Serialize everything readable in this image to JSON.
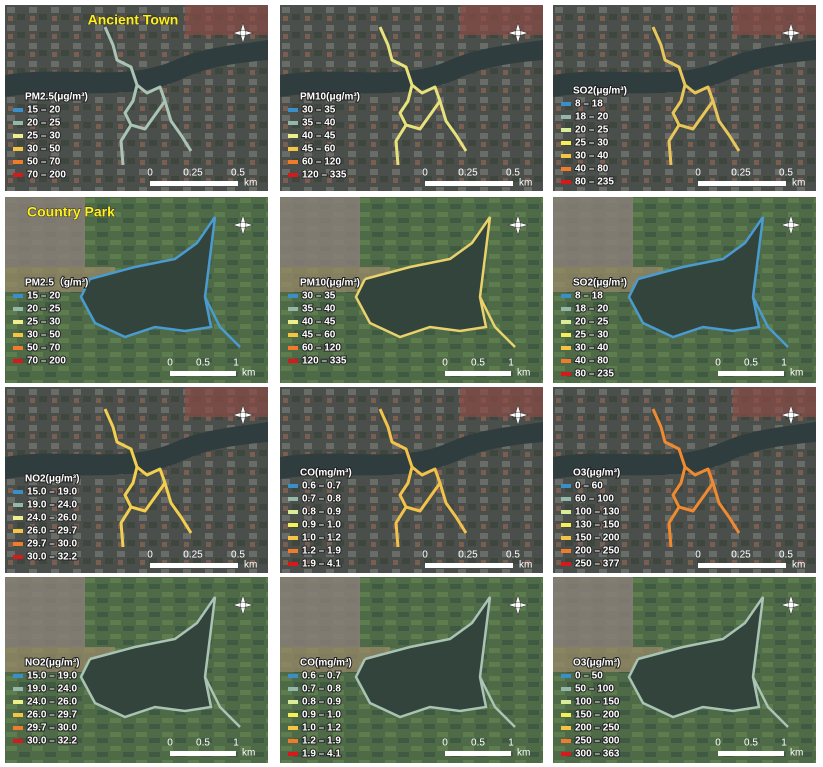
{
  "panels": [
    {
      "title": "Ancient Town",
      "legend_title": "PM2.5(μg/m³)",
      "route_color": "#a9c4b4",
      "legend": [
        {
          "label": "15 – 20",
          "color": "#3b8fc8"
        },
        {
          "label": "20 – 25",
          "color": "#93b8aa"
        },
        {
          "label": "25 – 30",
          "color": "#eeee8c"
        },
        {
          "label": "30 – 50",
          "color": "#f5c443"
        },
        {
          "label": "50 – 70",
          "color": "#f07b2a"
        },
        {
          "label": "70 – 200",
          "color": "#d8191c"
        }
      ],
      "scale": [
        "0",
        "0.25",
        "0.5"
      ],
      "unit": "km"
    },
    {
      "legend_title": "PM10(μg/m³)",
      "route_color": "#e6e27c",
      "legend": [
        {
          "label": "30 – 35",
          "color": "#3b8fc8"
        },
        {
          "label": "35 – 40",
          "color": "#93b8aa"
        },
        {
          "label": "40 – 45",
          "color": "#eeee8c"
        },
        {
          "label": "45 – 60",
          "color": "#f5c443"
        },
        {
          "label": "60 – 120",
          "color": "#f07b2a"
        },
        {
          "label": "120 – 335",
          "color": "#d8191c"
        }
      ],
      "scale": [
        "0",
        "0.25",
        "0.5"
      ],
      "unit": "km"
    },
    {
      "legend_title": "SO2(μg/m³)",
      "route_color": "#e8c65a",
      "legend": [
        {
          "label": "8 – 18",
          "color": "#3b8fc8"
        },
        {
          "label": "18 – 20",
          "color": "#93b8aa"
        },
        {
          "label": "20 – 25",
          "color": "#d8ec9a"
        },
        {
          "label": "25 – 30",
          "color": "#f5f05a"
        },
        {
          "label": "30 – 40",
          "color": "#f5c443"
        },
        {
          "label": "40 – 80",
          "color": "#f07b2a"
        },
        {
          "label": "80 – 235",
          "color": "#d8191c"
        }
      ],
      "scale": [
        "0",
        "0.25",
        "0.5"
      ],
      "unit": "km"
    },
    {
      "title": "Country Park",
      "legend_title": "PM2.5（g/m³)",
      "route_color": "#4a9bd0",
      "legend": [
        {
          "label": "15 – 20",
          "color": "#3b8fc8"
        },
        {
          "label": "20 – 25",
          "color": "#93b8aa"
        },
        {
          "label": "25 – 30",
          "color": "#eeee8c"
        },
        {
          "label": "30 – 50",
          "color": "#f5c443"
        },
        {
          "label": "50 – 70",
          "color": "#f07b2a"
        },
        {
          "label": "70 – 200",
          "color": "#d8191c"
        }
      ],
      "scale": [
        "0",
        "0.5",
        "1"
      ],
      "unit": "km"
    },
    {
      "legend_title": "PM10(μg/m³)",
      "route_color": "#e9d26c",
      "legend": [
        {
          "label": "30 – 35",
          "color": "#3b8fc8"
        },
        {
          "label": "35 – 40",
          "color": "#93b8aa"
        },
        {
          "label": "40 – 45",
          "color": "#eeee8c"
        },
        {
          "label": "45 – 60",
          "color": "#f5c443"
        },
        {
          "label": "60 – 120",
          "color": "#f07b2a"
        },
        {
          "label": "120 – 335",
          "color": "#d8191c"
        }
      ],
      "scale": [
        "0",
        "0.5",
        "1"
      ],
      "unit": "km"
    },
    {
      "legend_title": "SO2(μg/m³)",
      "route_color": "#4a9bd0",
      "legend": [
        {
          "label": "8 – 18",
          "color": "#3b8fc8"
        },
        {
          "label": "18 – 20",
          "color": "#93b8aa"
        },
        {
          "label": "20 – 25",
          "color": "#d8ec9a"
        },
        {
          "label": "25 – 30",
          "color": "#f5f05a"
        },
        {
          "label": "30 – 40",
          "color": "#f5c443"
        },
        {
          "label": "40 – 80",
          "color": "#f07b2a"
        },
        {
          "label": "80 – 235",
          "color": "#d8191c"
        }
      ],
      "scale": [
        "0",
        "0.5",
        "1"
      ],
      "unit": "km"
    },
    {
      "legend_title": "NO2(μg/m³)",
      "route_color": "#f2cf4e",
      "legend": [
        {
          "label": "15.0 – 19.0",
          "color": "#3b8fc8"
        },
        {
          "label": "19.0 – 24.0",
          "color": "#93b8aa"
        },
        {
          "label": "24.0 – 26.0",
          "color": "#eeee8c"
        },
        {
          "label": "26.0 – 29.7",
          "color": "#f5c443"
        },
        {
          "label": "29.7 – 30.0",
          "color": "#f07b2a"
        },
        {
          "label": "30.0 – 32.2",
          "color": "#d8191c"
        }
      ],
      "scale": [
        "0",
        "0.25",
        "0.5"
      ],
      "unit": "km"
    },
    {
      "legend_title": "CO(mg/m³)",
      "route_color": "#f2c24a",
      "legend": [
        {
          "label": "0.6 – 0.7",
          "color": "#3b8fc8"
        },
        {
          "label": "0.7 – 0.8",
          "color": "#93b8aa"
        },
        {
          "label": "0.8 – 0.9",
          "color": "#d8ec9a"
        },
        {
          "label": "0.9 – 1.0",
          "color": "#f5f05a"
        },
        {
          "label": "1.0 – 1.2",
          "color": "#f5c443"
        },
        {
          "label": "1.2 – 1.9",
          "color": "#f07b2a"
        },
        {
          "label": "1.9 – 4.1",
          "color": "#d8191c"
        }
      ],
      "scale": [
        "0",
        "0.25",
        "0.5"
      ],
      "unit": "km"
    },
    {
      "legend_title": "O3(μg/m³)",
      "route_color": "#f08a30",
      "legend": [
        {
          "label": "0 – 60",
          "color": "#3b8fc8"
        },
        {
          "label": "60 – 100",
          "color": "#93b8aa"
        },
        {
          "label": "100 – 130",
          "color": "#d8ec9a"
        },
        {
          "label": "130 – 150",
          "color": "#f5f05a"
        },
        {
          "label": "150 – 200",
          "color": "#f5c443"
        },
        {
          "label": "200 – 250",
          "color": "#f07b2a"
        },
        {
          "label": "250 – 377",
          "color": "#d8191c"
        }
      ],
      "scale": [
        "0",
        "0.25",
        "0.5"
      ],
      "unit": "km"
    },
    {
      "legend_title": "NO2(μg/m³)",
      "route_color": "#a9c4b4",
      "legend": [
        {
          "label": "15.0 – 19.0",
          "color": "#3b8fc8"
        },
        {
          "label": "19.0 – 24.0",
          "color": "#93b8aa"
        },
        {
          "label": "24.0 – 26.0",
          "color": "#eeee8c"
        },
        {
          "label": "26.0 – 29.7",
          "color": "#f5c443"
        },
        {
          "label": "29.7 – 30.0",
          "color": "#f07b2a"
        },
        {
          "label": "30.0 – 32.2",
          "color": "#d8191c"
        }
      ],
      "scale": [
        "0",
        "0.5",
        "1"
      ],
      "unit": "km"
    },
    {
      "legend_title": "CO(mg/m³)",
      "route_color": "#a9c4b4",
      "legend": [
        {
          "label": "0.6 – 0.7",
          "color": "#3b8fc8"
        },
        {
          "label": "0.7 – 0.8",
          "color": "#93b8aa"
        },
        {
          "label": "0.8 – 0.9",
          "color": "#d8ec9a"
        },
        {
          "label": "0.9 – 1.0",
          "color": "#f5f05a"
        },
        {
          "label": "1.0 – 1.2",
          "color": "#f5c443"
        },
        {
          "label": "1.2 – 1.9",
          "color": "#f07b2a"
        },
        {
          "label": "1.9 – 4.1",
          "color": "#d8191c"
        }
      ],
      "scale": [
        "0",
        "0.5",
        "1"
      ],
      "unit": "km"
    },
    {
      "legend_title": "O3(μg/m³)",
      "route_color": "#a9c4b4",
      "legend": [
        {
          "label": "0 – 50",
          "color": "#3b8fc8"
        },
        {
          "label": "50 – 100",
          "color": "#93b8aa"
        },
        {
          "label": "100 – 150",
          "color": "#d8ec9a"
        },
        {
          "label": "150 – 200",
          "color": "#f5f05a"
        },
        {
          "label": "200 – 250",
          "color": "#f5c443"
        },
        {
          "label": "250 – 300",
          "color": "#f07b2a"
        },
        {
          "label": "300 – 363",
          "color": "#d8191c"
        }
      ],
      "scale": [
        "0",
        "0.5",
        "1"
      ],
      "unit": "km"
    }
  ]
}
